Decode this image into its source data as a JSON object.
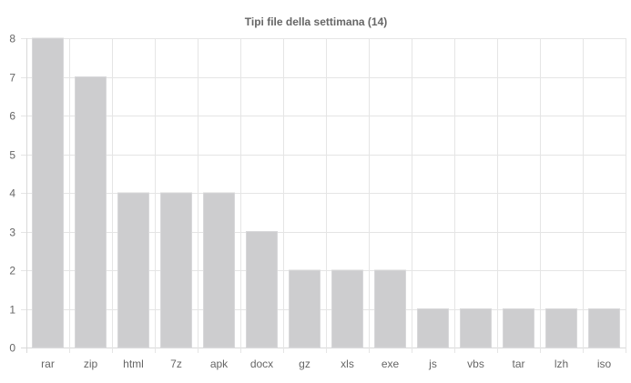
{
  "chart_data": {
    "type": "bar",
    "title": "Tipi file della settimana (14)",
    "xlabel": "",
    "ylabel": "",
    "categories": [
      "rar",
      "zip",
      "html",
      "7z",
      "apk",
      "docx",
      "gz",
      "xls",
      "exe",
      "js",
      "vbs",
      "tar",
      "lzh",
      "iso"
    ],
    "values": [
      8,
      7,
      4,
      4,
      4,
      3,
      2,
      2,
      2,
      1,
      1,
      1,
      1,
      1
    ],
    "ylim": [
      0,
      8
    ],
    "yticks": [
      0,
      1,
      2,
      3,
      4,
      5,
      6,
      7,
      8
    ],
    "grid": true,
    "legend": "none",
    "colors": {
      "bar_fill": "#cdcdcf",
      "bar_stroke": "#d8d8da",
      "grid": "#e5e5e5",
      "text": "#666666"
    }
  }
}
